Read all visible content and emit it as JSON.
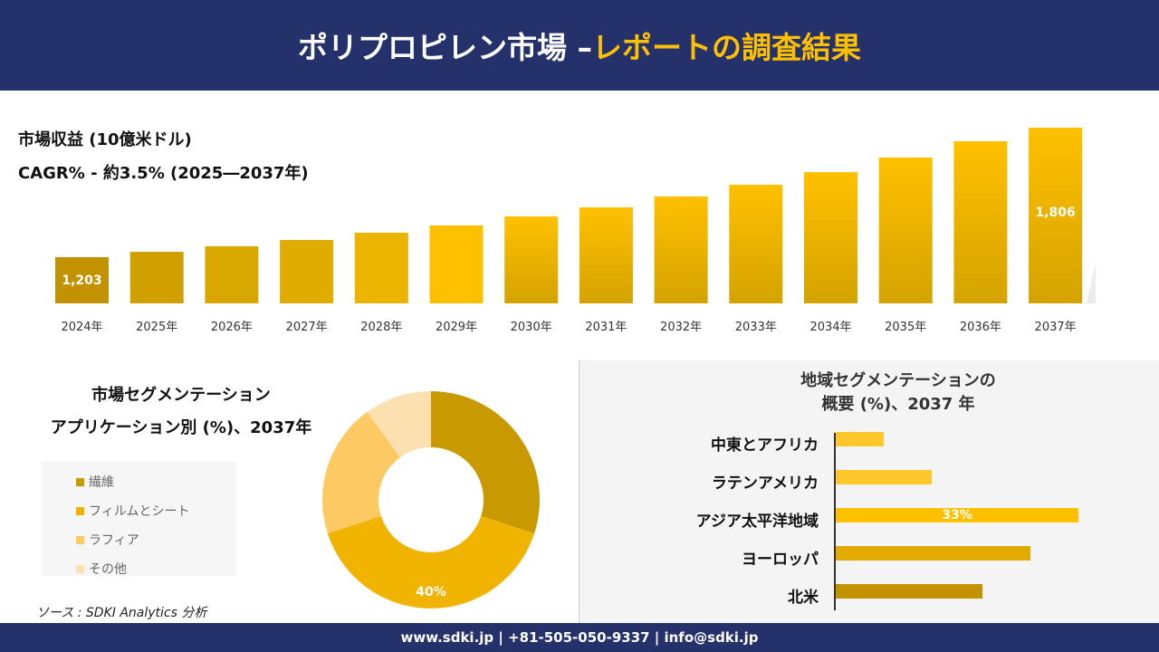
{
  "header": {
    "title_main": "ポリプロピレン市場 –",
    "title_highlight": "レポートの調査結果"
  },
  "revenue": {
    "subtitle1": "市場収益 (10億米ドル)",
    "subtitle2": "CAGR% - 約3.5% (2025―2037年)"
  },
  "application": {
    "title1": "市場セグメンテーション",
    "title2": "アプリケーション別 (%)、2037年"
  },
  "regional": {
    "title1": "地域セグメンテーションの",
    "title2": "概要 (%)、2037 年"
  },
  "source": "ソース : SDKI Analytics 分析",
  "footer": "www.sdki.jp | +81-505-050-9337 | info@sdki.jp",
  "colors": {
    "navy": "#24316b",
    "gold": "#ffc000"
  },
  "chart_data": [
    {
      "type": "bar",
      "categories": [
        "2024年",
        "2025年",
        "2026年",
        "2027年",
        "2028年",
        "2029年",
        "2030年",
        "2031年",
        "2032年",
        "2033年",
        "2034年",
        "2035年",
        "2036年",
        "2037年"
      ],
      "values": [
        1203,
        1228,
        1254,
        1283,
        1317,
        1351,
        1393,
        1435,
        1486,
        1540,
        1599,
        1667,
        1743,
        1806
      ],
      "data_labels": {
        "0": "1,203",
        "13": "1,806"
      },
      "colors": [
        "#c39200",
        "#cfa000",
        "#d8a700",
        "#e0ac00",
        "#eab400",
        "#ffc000",
        "#f2b800",
        "#f2b800",
        "#f2b800",
        "#f2b800",
        "#f2b800",
        "#f2b800",
        "#f2b800",
        "#f2b800"
      ],
      "ylim": [
        988,
        1806
      ],
      "grid": false
    },
    {
      "type": "pie",
      "donut": true,
      "labels": [
        "繊維",
        "フィルムとシート",
        "ラフィア",
        "その他"
      ],
      "values": [
        30,
        40,
        20,
        10
      ],
      "data_labels": {
        "1": "40%"
      },
      "colors": [
        "#c89900",
        "#f0b400",
        "#fcc963",
        "#fde0b0"
      ],
      "legend": "left"
    },
    {
      "type": "bar",
      "orientation": "horizontal",
      "categories": [
        "中東とアフリカ",
        "ラテンアメリカ",
        "アジア太平洋地域",
        "ヨーロッパ",
        "北米"
      ],
      "values": [
        6.5,
        13,
        33,
        26.5,
        20
      ],
      "data_labels": {
        "2": "33%"
      },
      "colors": [
        "#ffc72c",
        "#ffc72c",
        "#ffc000",
        "#e3ab00",
        "#c39200"
      ],
      "xlim": [
        0,
        33
      ]
    }
  ]
}
